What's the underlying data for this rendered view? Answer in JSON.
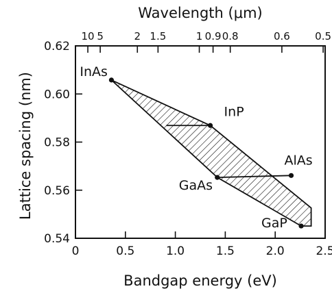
{
  "chart_data": {
    "type": "scatter",
    "title": "",
    "xlabel": "Bandgap energy (eV)",
    "ylabel": "Lattice spacing (nm)",
    "top_axis_label": "Wavelength (μm)",
    "xlim": [
      0,
      2.5
    ],
    "ylim": [
      0.54,
      0.62
    ],
    "x_ticks": [
      0,
      0.5,
      1.0,
      1.5,
      2.0,
      2.5
    ],
    "x_tick_labels": [
      "0",
      "0.5",
      "1.0",
      "1.5",
      "2.0",
      "2.5"
    ],
    "y_ticks": [
      0.54,
      0.56,
      0.58,
      0.6,
      0.62
    ],
    "y_tick_labels": [
      "0.54",
      "0.56",
      "0.58",
      "0.60",
      "0.62"
    ],
    "top_ticks_um": [
      10,
      5,
      2,
      1.5,
      1,
      0.9,
      0.8,
      0.6,
      0.5
    ],
    "top_tick_labels": [
      "10",
      "5",
      "2",
      "1.5",
      "1",
      "0.9",
      "0.8",
      "0.6",
      "0.5"
    ],
    "grid": false,
    "compounds": [
      {
        "name": "InAs",
        "x": 0.36,
        "y": 0.6058
      },
      {
        "name": "InP",
        "x": 1.35,
        "y": 0.5869
      },
      {
        "name": "GaAs",
        "x": 1.42,
        "y": 0.5653
      },
      {
        "name": "AlAs",
        "x": 2.16,
        "y": 0.5661
      },
      {
        "name": "GaP",
        "x": 2.26,
        "y": 0.5451
      }
    ],
    "tie_lines": [
      {
        "from": "GaAs",
        "to": "AlAs"
      },
      {
        "from_point": [
          0.91,
          0.5869
        ],
        "to": "InP"
      }
    ],
    "shaded_region": {
      "fill": "hatched",
      "vertices": [
        [
          0.36,
          0.6058
        ],
        [
          1.35,
          0.5869
        ],
        [
          2.36,
          0.5526
        ],
        [
          2.36,
          0.5451
        ],
        [
          2.26,
          0.5451
        ],
        [
          1.42,
          0.5653
        ]
      ]
    },
    "colors": {
      "ink": "#111111",
      "background": "#ffffff"
    }
  }
}
